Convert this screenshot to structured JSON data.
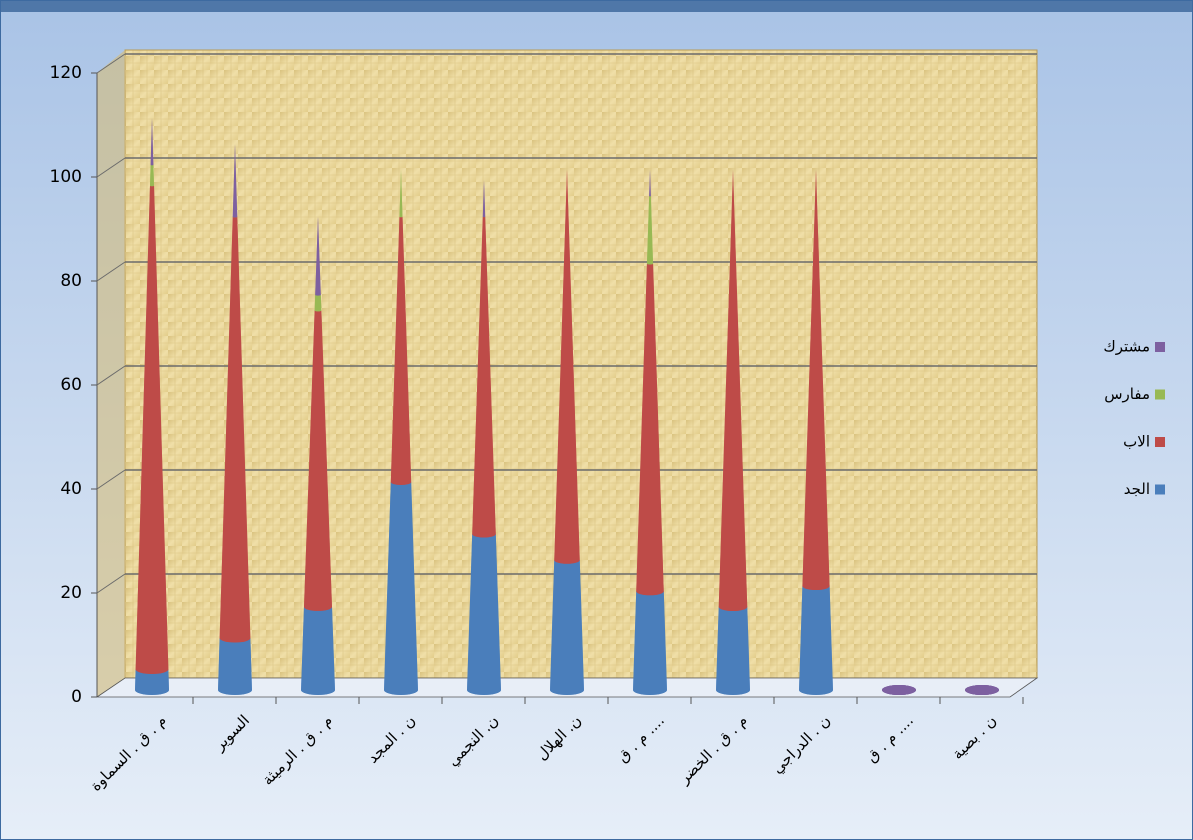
{
  "chart_data": {
    "type": "cone",
    "categories": [
      "م . ق . السماوة",
      "السوير",
      "م . ق . الرميثة",
      "ن . المجد",
      "ن. النجمي",
      "ن. الهلال",
      "م . ق ....",
      "م . ق . الخضر",
      "ن . الدراجي",
      "م . ق ....",
      "ن . بصية"
    ],
    "series": [
      {
        "name": "الجد",
        "color": "#4a7ebb",
        "values": [
          4,
          10,
          16,
          40,
          30,
          25,
          19,
          16,
          20,
          0,
          0
        ]
      },
      {
        "name": "الاب",
        "color": "#be4b48",
        "values": [
          93,
          81,
          57,
          51,
          61,
          75,
          63,
          84,
          80,
          0,
          0
        ]
      },
      {
        "name": "مفارس",
        "color": "#98b954",
        "values": [
          4,
          0,
          3,
          9,
          0,
          0,
          13,
          0,
          0,
          0,
          0
        ]
      },
      {
        "name": "مشترك",
        "color": "#7d60a0",
        "values": [
          9,
          14,
          15,
          0,
          7,
          0,
          5,
          0,
          0,
          0,
          0
        ]
      }
    ],
    "ylim": [
      0,
      120
    ],
    "yticks": [
      0,
      20,
      40,
      60,
      80,
      100,
      120
    ],
    "grid": true,
    "stacked": true,
    "legend": "right"
  }
}
